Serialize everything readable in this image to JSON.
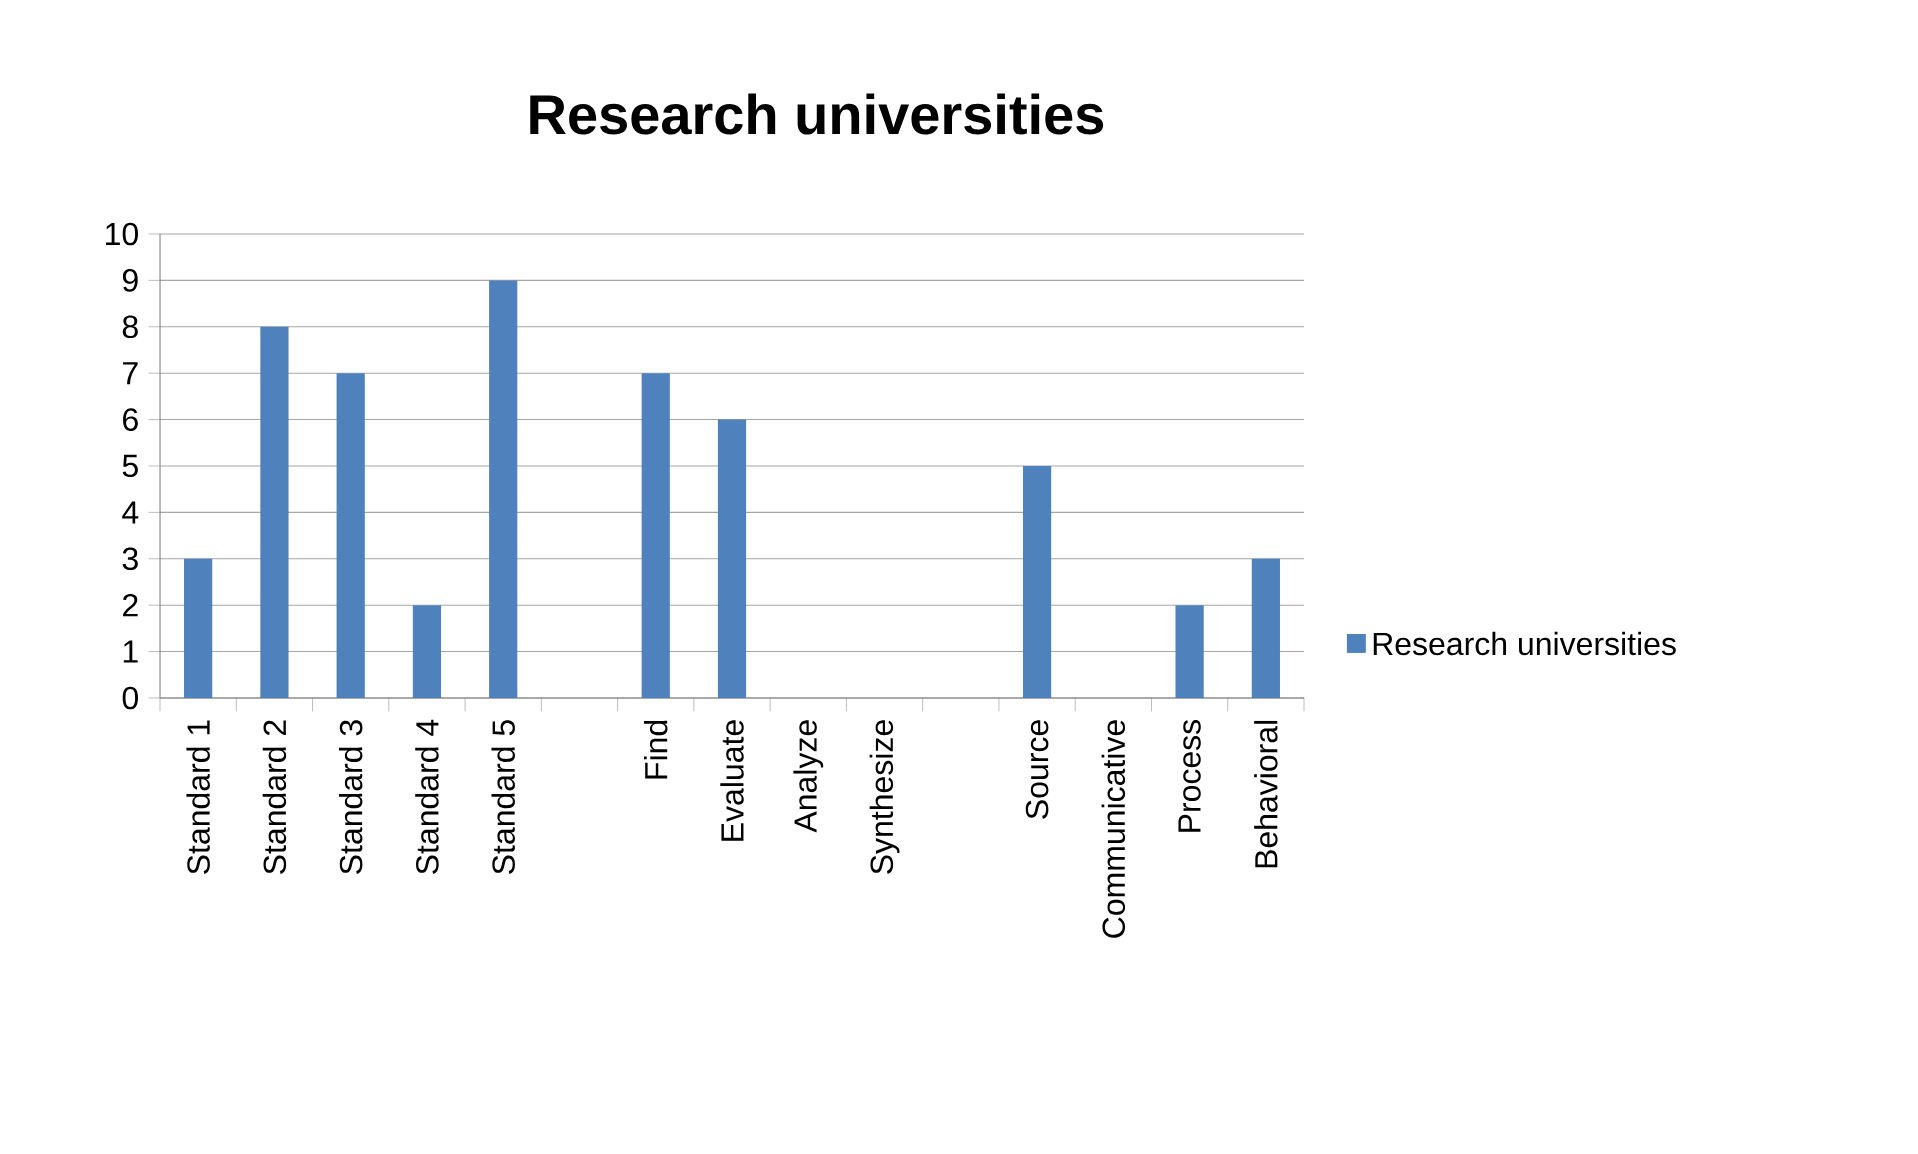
{
  "chart_data": {
    "type": "bar",
    "title": "Research universities",
    "categories": [
      "Standard 1",
      "Standard 2",
      "Standard 3",
      "Standard 4",
      "Standard 5",
      null,
      "Find",
      "Evaluate",
      "Analyze",
      "Synthesize",
      null,
      "Source",
      "Communicative",
      "Process",
      "Behavioral"
    ],
    "series": [
      {
        "name": "Research universities",
        "color": "#4f81bd",
        "values": [
          3,
          8,
          7,
          2,
          9,
          null,
          7,
          6,
          0,
          0,
          null,
          5,
          0,
          2,
          3
        ]
      }
    ],
    "ylim": [
      0,
      10
    ],
    "yticks": [
      0,
      1,
      2,
      3,
      4,
      5,
      6,
      7,
      8,
      9,
      10
    ],
    "grid": "y",
    "legend": "right"
  }
}
